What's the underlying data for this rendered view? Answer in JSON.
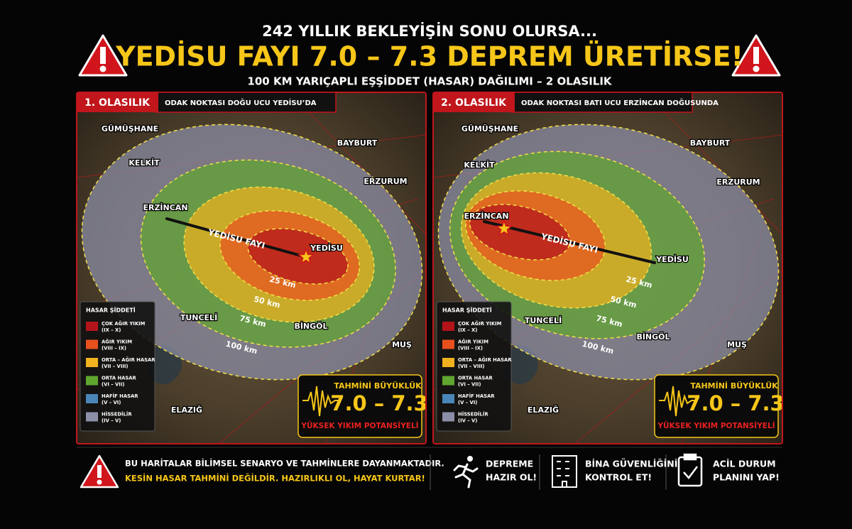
{
  "header": {
    "kicker": "242 YILLIK BEKLEYİŞİN SONU OLURSA...",
    "title": "YEDİSU FAYI 7.0 – 7.3 DEPREM ÜRETİRSE!",
    "subtitle": "100 KM YARIÇAPLI EŞŞİDDET (HASAR) DAĞILIMI – 2 OLASILIK"
  },
  "places": [
    "GÜMÜŞHANE",
    "BAYBURT",
    "KELKİT",
    "ERZURUM",
    "ERZİNCAN",
    "YEDİSU",
    "TUNCELİ",
    "BİNGÖL",
    "MUŞ",
    "ELAZIĞ"
  ],
  "fault": "YEDİSU FAYI",
  "rings": [
    "25 km",
    "50 km",
    "75 km",
    "100 km"
  ],
  "panels": [
    {
      "tag": "1. OLASILIK",
      "caption": "ODAK NOKTASI DOĞU UCU YEDİSU’DA"
    },
    {
      "tag": "2. OLASILIK",
      "caption": "ODAK NOKTASI BATI UCU ERZİNCAN DOĞUSUNDA"
    }
  ],
  "legend": {
    "title": "HASAR ŞİDDETİ",
    "items": [
      {
        "label": "ÇOK AĞIR YIKIM",
        "range": "(IX – X)",
        "color": "#b3141a"
      },
      {
        "label": "AĞIR YIKIM",
        "range": "(VIII – IX)",
        "color": "#e8501e"
      },
      {
        "label": "ORTA – AĞIR HASAR",
        "range": "(VII – VIII)",
        "color": "#f0b21e"
      },
      {
        "label": "ORTA HASAR",
        "range": "(VI – VII)",
        "color": "#5fa52e"
      },
      {
        "label": "HAFİF HASAR",
        "range": "(V – VI)",
        "color": "#4a86b8"
      },
      {
        "label": "HİSSEDİLİR",
        "range": "(IV – V)",
        "color": "#8c8fa8"
      }
    ]
  },
  "magnitude": {
    "title": "TAHMİNİ BÜYÜKLÜK",
    "value": "7.0 – 7.3",
    "note": "YÜKSEK YIKIM POTANSİYELİ"
  },
  "footer": {
    "warning": [
      "BU HARİTALAR BİLİMSEL SENARYO VE TAHMİNLERE DAYANMAKTADIR.",
      "KESİN HASAR TAHMİNİ DEĞİLDİR. HAZIRLIKLI OL, HAYAT KURTAR!"
    ],
    "actions": [
      [
        "DEPREME",
        "HAZIR OL!"
      ],
      [
        "BİNA GÜVENLİĞİNİ",
        "KONTROL ET!"
      ],
      [
        "ACİL DURUM",
        "PLANINI YAP!"
      ]
    ]
  }
}
